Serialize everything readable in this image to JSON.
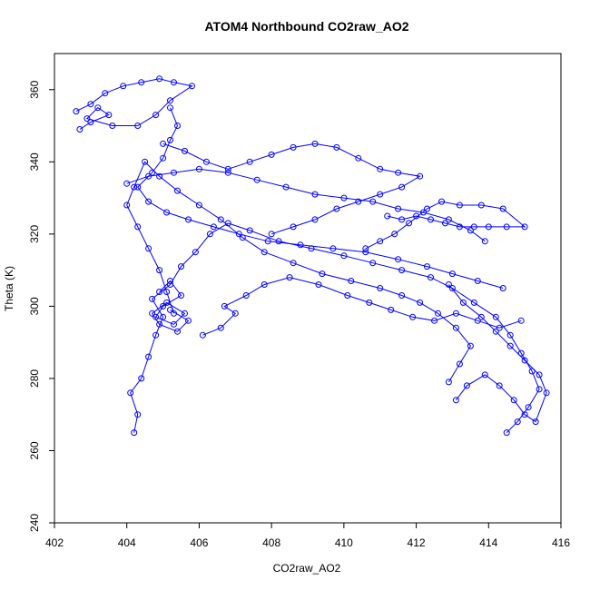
{
  "chart_data": {
    "type": "line",
    "title": "ATOM4 Northbound CO2raw_AO2",
    "xlabel": "CO2raw_AO2",
    "ylabel": "Theta (K)",
    "xlim": [
      402,
      416
    ],
    "ylim": [
      240,
      370
    ],
    "xticks": [
      402,
      404,
      406,
      408,
      410,
      412,
      414,
      416
    ],
    "yticks": [
      240,
      260,
      280,
      300,
      320,
      340,
      360
    ],
    "grid": false,
    "legend": "none",
    "marker": "open-circle",
    "series_color": "#0000ff",
    "series": [
      {
        "values": [
          [
            404.2,
            265.0
          ],
          [
            404.3,
            270.0
          ],
          [
            404.1,
            276.0
          ],
          [
            404.4,
            280.0
          ],
          [
            404.6,
            286.0
          ],
          [
            404.8,
            292.0
          ],
          [
            405.0,
            297.0
          ],
          [
            404.7,
            302.0
          ],
          [
            405.2,
            306.0
          ],
          [
            405.5,
            311.0
          ],
          [
            405.9,
            315.0
          ],
          [
            406.3,
            320.0
          ],
          [
            406.8,
            323.0
          ],
          [
            407.4,
            321.0
          ],
          [
            408.2,
            318.0
          ],
          [
            409.1,
            316.0
          ],
          [
            410.0,
            314.0
          ],
          [
            410.8,
            312.0
          ],
          [
            411.6,
            310.0
          ],
          [
            412.4,
            308.0
          ],
          [
            413.0,
            305.0
          ],
          [
            413.6,
            301.0
          ],
          [
            414.2,
            297.0
          ],
          [
            414.6,
            292.0
          ],
          [
            414.9,
            287.0
          ],
          [
            415.2,
            282.0
          ],
          [
            415.4,
            277.0
          ],
          [
            415.1,
            272.0
          ],
          [
            414.8,
            268.0
          ],
          [
            414.5,
            265.0
          ]
        ]
      },
      {
        "values": [
          [
            412.9,
            279.0
          ],
          [
            413.2,
            284.0
          ],
          [
            413.5,
            289.0
          ],
          [
            413.1,
            294.0
          ],
          [
            412.6,
            298.0
          ],
          [
            412.1,
            301.0
          ],
          [
            411.6,
            303.0
          ],
          [
            411.0,
            305.0
          ],
          [
            410.2,
            307.0
          ],
          [
            409.4,
            309.0
          ],
          [
            408.6,
            312.0
          ],
          [
            407.8,
            315.0
          ],
          [
            407.2,
            319.0
          ],
          [
            406.6,
            324.0
          ],
          [
            406.0,
            328.0
          ],
          [
            405.4,
            332.0
          ],
          [
            404.9,
            336.0
          ],
          [
            404.5,
            340.0
          ],
          [
            404.2,
            333.0
          ],
          [
            404.0,
            328.0
          ],
          [
            404.3,
            322.0
          ],
          [
            404.6,
            316.0
          ],
          [
            404.9,
            310.0
          ],
          [
            405.1,
            304.0
          ],
          [
            405.3,
            298.0
          ]
        ]
      },
      {
        "values": [
          [
            402.6,
            354.0
          ],
          [
            403.0,
            356.0
          ],
          [
            403.4,
            359.0
          ],
          [
            403.9,
            361.0
          ],
          [
            404.4,
            362.0
          ],
          [
            404.9,
            363.0
          ],
          [
            405.3,
            362.0
          ],
          [
            405.8,
            361.0
          ],
          [
            405.2,
            357.0
          ],
          [
            404.8,
            353.0
          ],
          [
            404.3,
            350.0
          ],
          [
            403.6,
            350.0
          ],
          [
            402.9,
            352.0
          ],
          [
            403.2,
            355.0
          ],
          [
            403.5,
            353.0
          ],
          [
            403.0,
            351.0
          ],
          [
            402.7,
            349.0
          ]
        ]
      },
      {
        "values": [
          [
            405.0,
            345.0
          ],
          [
            405.6,
            343.0
          ],
          [
            406.2,
            340.0
          ],
          [
            406.8,
            338.0
          ],
          [
            407.4,
            340.0
          ],
          [
            408.0,
            342.0
          ],
          [
            408.6,
            344.0
          ],
          [
            409.2,
            345.0
          ],
          [
            409.8,
            344.0
          ],
          [
            410.4,
            341.0
          ],
          [
            411.0,
            338.0
          ],
          [
            411.5,
            337.0
          ],
          [
            412.1,
            336.0
          ],
          [
            411.6,
            333.0
          ],
          [
            411.0,
            331.0
          ],
          [
            410.4,
            329.0
          ],
          [
            409.8,
            327.0
          ],
          [
            409.2,
            324.0
          ],
          [
            408.6,
            322.0
          ],
          [
            408.0,
            320.0
          ]
        ]
      },
      {
        "values": [
          [
            411.2,
            325.0
          ],
          [
            411.6,
            324.0
          ],
          [
            412.0,
            325.0
          ],
          [
            412.4,
            324.0
          ],
          [
            412.8,
            323.0
          ],
          [
            413.2,
            322.0
          ],
          [
            413.6,
            322.0
          ],
          [
            414.0,
            322.0
          ],
          [
            414.5,
            322.0
          ],
          [
            415.0,
            322.0
          ],
          [
            414.4,
            327.0
          ],
          [
            413.8,
            328.0
          ],
          [
            413.2,
            328.0
          ],
          [
            412.7,
            329.0
          ],
          [
            412.3,
            327.0
          ],
          [
            411.8,
            323.0
          ],
          [
            411.4,
            320.0
          ],
          [
            411.0,
            318.0
          ],
          [
            410.6,
            316.0
          ]
        ]
      },
      {
        "values": [
          [
            406.1,
            292.0
          ],
          [
            406.6,
            294.0
          ],
          [
            407.0,
            298.0
          ],
          [
            406.7,
            300.0
          ],
          [
            407.3,
            303.0
          ],
          [
            407.8,
            306.0
          ],
          [
            408.5,
            308.0
          ],
          [
            409.3,
            306.0
          ],
          [
            410.1,
            303.0
          ],
          [
            410.7,
            301.0
          ],
          [
            411.3,
            299.0
          ],
          [
            411.9,
            297.0
          ],
          [
            412.5,
            296.0
          ],
          [
            413.1,
            298.0
          ],
          [
            413.7,
            296.0
          ],
          [
            414.3,
            294.0
          ],
          [
            414.9,
            296.0
          ]
        ]
      },
      {
        "values": [
          [
            413.1,
            274.0
          ],
          [
            413.4,
            278.0
          ],
          [
            413.9,
            281.0
          ],
          [
            414.3,
            278.0
          ],
          [
            414.7,
            274.0
          ],
          [
            415.0,
            270.0
          ],
          [
            415.3,
            268.0
          ],
          [
            415.6,
            276.0
          ],
          [
            415.4,
            281.0
          ],
          [
            415.0,
            285.0
          ],
          [
            414.6,
            289.0
          ],
          [
            414.2,
            293.0
          ],
          [
            413.8,
            297.0
          ],
          [
            413.3,
            301.0
          ],
          [
            412.9,
            306.0
          ]
        ]
      },
      {
        "values": [
          [
            404.0,
            334.0
          ],
          [
            404.6,
            336.0
          ],
          [
            405.3,
            337.0
          ],
          [
            406.0,
            338.0
          ],
          [
            406.8,
            337.0
          ],
          [
            407.6,
            335.0
          ],
          [
            408.4,
            333.0
          ],
          [
            409.2,
            331.0
          ],
          [
            410.0,
            330.0
          ],
          [
            410.8,
            329.0
          ],
          [
            411.5,
            327.0
          ],
          [
            412.2,
            326.0
          ],
          [
            412.9,
            324.0
          ],
          [
            413.5,
            321.0
          ],
          [
            413.9,
            318.0
          ]
        ]
      },
      {
        "values": [
          [
            405.2,
            355.0
          ],
          [
            405.4,
            350.0
          ],
          [
            405.2,
            346.0
          ],
          [
            405.0,
            341.0
          ],
          [
            404.7,
            337.0
          ],
          [
            404.3,
            333.0
          ],
          [
            404.6,
            329.0
          ],
          [
            405.1,
            326.0
          ],
          [
            405.7,
            324.0
          ],
          [
            406.4,
            322.0
          ],
          [
            407.1,
            320.0
          ],
          [
            407.9,
            318.0
          ],
          [
            408.8,
            317.0
          ],
          [
            409.7,
            316.0
          ],
          [
            410.6,
            315.0
          ],
          [
            411.5,
            313.0
          ],
          [
            412.3,
            311.0
          ],
          [
            413.0,
            309.0
          ],
          [
            413.7,
            307.0
          ],
          [
            414.4,
            305.0
          ]
        ]
      },
      {
        "values": [
          [
            404.9,
            304.0
          ],
          [
            405.2,
            307.0
          ],
          [
            405.5,
            303.0
          ],
          [
            405.0,
            300.0
          ],
          [
            404.8,
            297.0
          ],
          [
            405.3,
            295.0
          ],
          [
            405.6,
            298.0
          ],
          [
            405.1,
            301.0
          ],
          [
            404.7,
            298.0
          ],
          [
            404.9,
            295.0
          ],
          [
            405.4,
            293.0
          ],
          [
            405.7,
            296.0
          ],
          [
            405.2,
            299.0
          ]
        ]
      }
    ]
  }
}
